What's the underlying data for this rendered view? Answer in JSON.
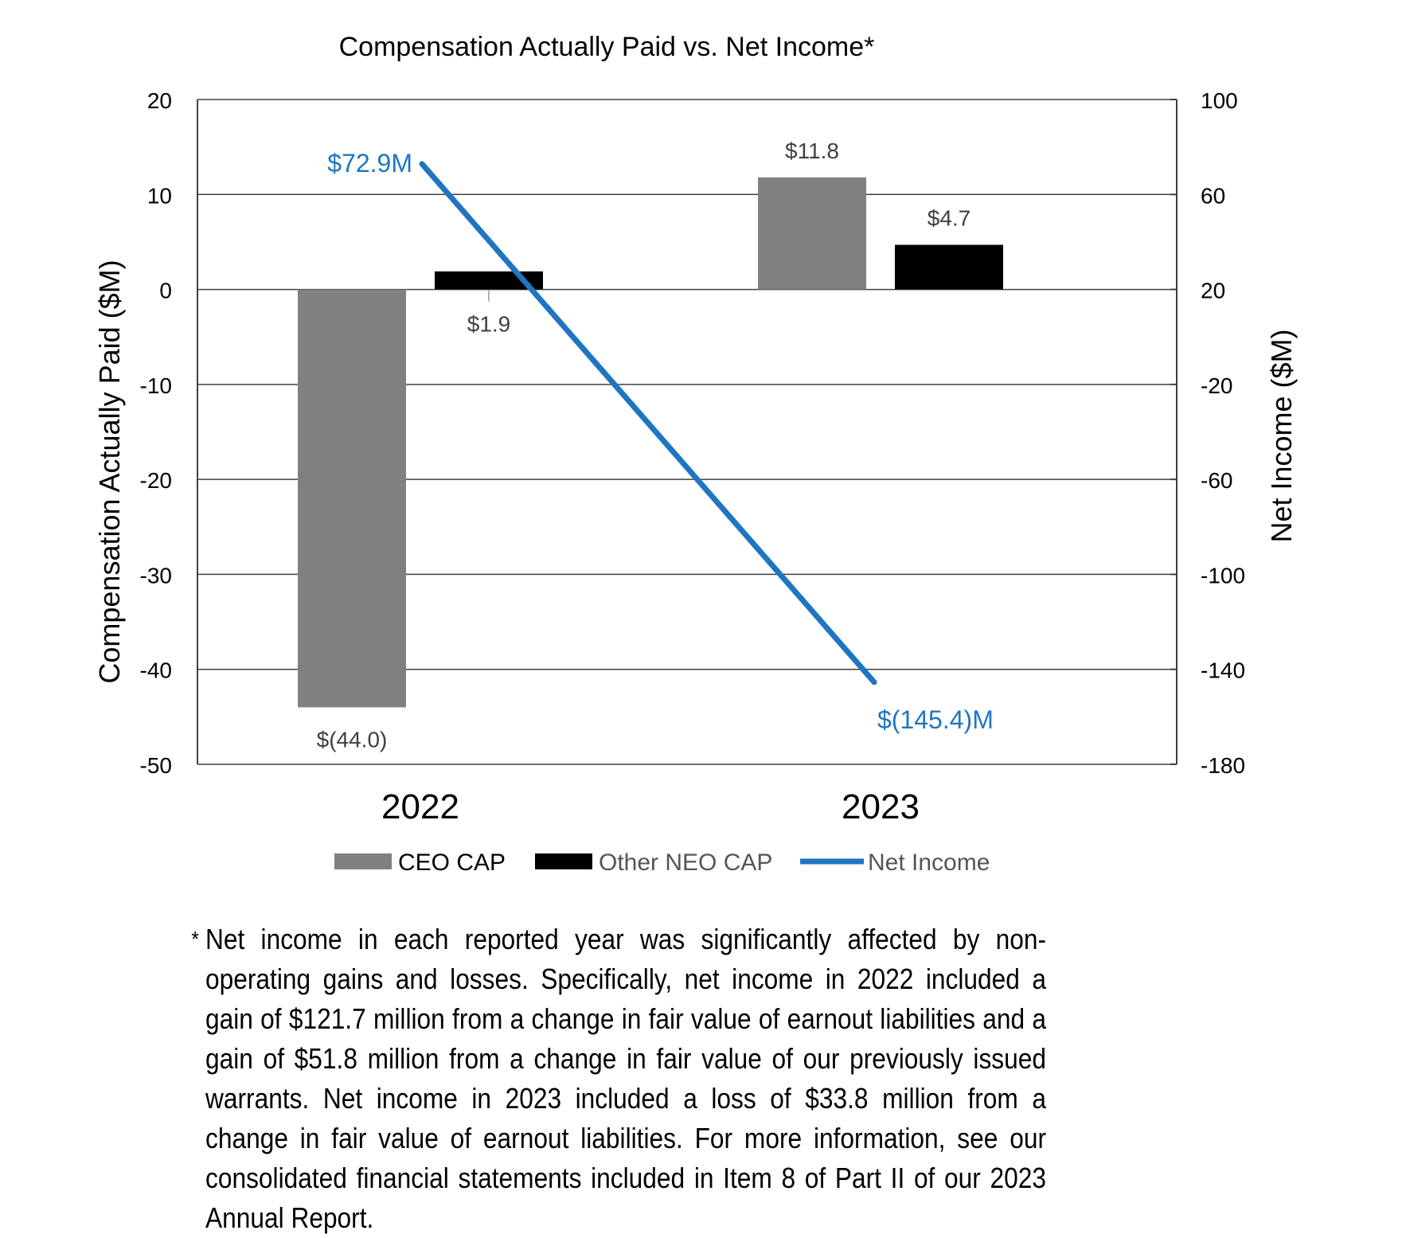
{
  "colors": {
    "ceo_cap": "#808080",
    "other_neo_cap": "#000000",
    "net_income": "#1F75C2",
    "bar_label": "#404040",
    "axis": "#404040",
    "grid": "#404040"
  },
  "chart_data": {
    "type": "bar",
    "title": "Compensation Actually Paid vs. Net Income*",
    "categories": [
      "2022",
      "2023"
    ],
    "series": [
      {
        "name": "CEO CAP",
        "type": "bar",
        "axis": "left",
        "values": [
          -44.0,
          11.8
        ],
        "labels": [
          "$(44.0)",
          "$11.8"
        ]
      },
      {
        "name": "Other NEO CAP",
        "type": "bar",
        "axis": "left",
        "values": [
          1.9,
          4.7
        ],
        "labels": [
          "$1.9",
          "$4.7"
        ]
      },
      {
        "name": "Net Income",
        "type": "line",
        "axis": "right",
        "values": [
          72.9,
          -145.4
        ],
        "labels": [
          "$72.9M",
          "$(145.4)M"
        ]
      }
    ],
    "y_left": {
      "label": "Compensation Actually Paid ($M)",
      "min": -50,
      "max": 20,
      "ticks": [
        20,
        10,
        0,
        -10,
        -20,
        -30,
        -40,
        -50
      ]
    },
    "y_right": {
      "label": "Net Income ($M)",
      "min": -180,
      "max": 100,
      "ticks": [
        100,
        60,
        20,
        -20,
        -60,
        -100,
        -140,
        -180
      ]
    },
    "grid": true,
    "legend_position": "bottom"
  },
  "footnote": {
    "marker": "*",
    "text": "Net income in each reported year was significantly affected by non-operating gains and losses. Specifically, net income in 2022 included a gain of $121.7 million from a change in fair value of earnout liabilities and a gain of $51.8 million from a change in fair value of our previously issued warrants. Net income in 2023 included a loss of $33.8 million from a change in fair value of earnout liabilities. For more information, see our consolidated financial statements included in Item 8 of Part II of our 2023 Annual Report."
  }
}
